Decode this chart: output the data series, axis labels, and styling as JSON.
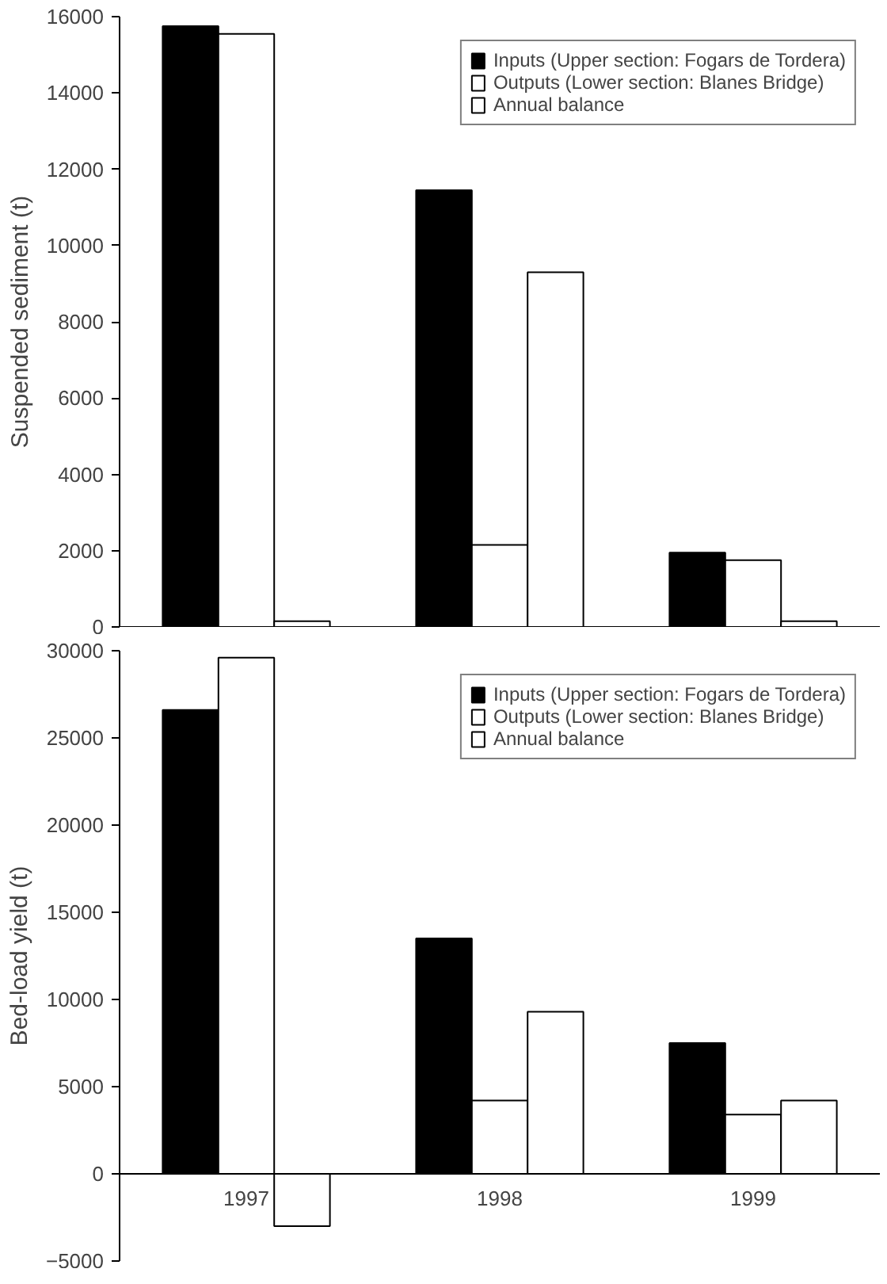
{
  "chart_data": [
    {
      "type": "bar",
      "ylabel": "Suspended sediment (t)",
      "categories": [
        "1997",
        "1998",
        "1999"
      ],
      "tick_labels": "y",
      "series": [
        {
          "name": "Inputs (Upper section: Fogars de Tordera)",
          "color": "#000000",
          "values": [
            15750,
            11450,
            1950
          ]
        },
        {
          "name": "Outputs (Lower section: Blanes Bridge)",
          "color": "#ffffff",
          "values": [
            15550,
            2150,
            1750
          ]
        },
        {
          "name": "Annual balance",
          "color": "#ffffff",
          "values": [
            150,
            9300,
            150
          ]
        }
      ],
      "ylim": [
        0,
        16000
      ],
      "yticks": [
        0,
        2000,
        4000,
        6000,
        8000,
        10000,
        12000,
        14000,
        16000
      ],
      "legend": "top right",
      "grid": false
    },
    {
      "type": "bar",
      "ylabel": "Bed-load yield (t)",
      "categories": [
        "1997",
        "1998",
        "1999"
      ],
      "series": [
        {
          "name": "Inputs (Upper section: Fogars de Tordera)",
          "color": "#000000",
          "values": [
            26600,
            13500,
            7500
          ]
        },
        {
          "name": "Outputs (Lower section: Blanes Bridge)",
          "color": "#ffffff",
          "values": [
            29600,
            4200,
            3400
          ]
        },
        {
          "name": "Annual balance",
          "color": "#ffffff",
          "values": [
            -3000,
            9300,
            4200
          ]
        }
      ],
      "ylim": [
        -5000,
        30000
      ],
      "yticks": [
        -5000,
        0,
        5000,
        10000,
        15000,
        20000,
        25000,
        30000
      ],
      "legend": "top right",
      "grid": false
    }
  ]
}
